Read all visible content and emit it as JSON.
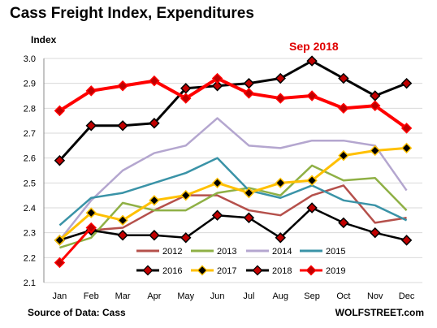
{
  "title": "Cass Freight Index, Expenditures",
  "source": "Source of Data: Cass",
  "site": "WOLFSTREET.com",
  "chart_data": {
    "type": "line",
    "title": "Cass Freight Index, Expenditures",
    "ylabel": "Index",
    "xlabel": "",
    "ylim": [
      2.1,
      3.0
    ],
    "yticks": [
      "2.1",
      "2.2",
      "2.3",
      "2.4",
      "2.5",
      "2.6",
      "2.7",
      "2.8",
      "2.9",
      "3.0"
    ],
    "categories": [
      "Jan",
      "Feb",
      "Mar",
      "Apr",
      "May",
      "Jun",
      "Jul",
      "Aug",
      "Sep",
      "Oct",
      "Nov",
      "Dec"
    ],
    "annotation": "Sep 2018",
    "legend_position": "bottom-right",
    "grid": "horizontal",
    "series": [
      {
        "name": "2012",
        "color": "#b5504b",
        "marker": false,
        "values": [
          2.27,
          2.31,
          2.32,
          2.39,
          2.45,
          2.45,
          2.39,
          2.37,
          2.45,
          2.49,
          2.34,
          2.36
        ]
      },
      {
        "name": "2013",
        "color": "#8fb045",
        "marker": false,
        "values": [
          2.24,
          2.28,
          2.42,
          2.39,
          2.39,
          2.46,
          2.48,
          2.45,
          2.57,
          2.51,
          2.52,
          2.39
        ]
      },
      {
        "name": "2014",
        "color": "#b4a6cf",
        "marker": false,
        "values": [
          2.27,
          2.43,
          2.55,
          2.62,
          2.65,
          2.76,
          2.65,
          2.64,
          2.67,
          2.67,
          2.65,
          2.47
        ]
      },
      {
        "name": "2015",
        "color": "#3a93a7",
        "marker": false,
        "values": [
          2.33,
          2.44,
          2.46,
          2.5,
          2.54,
          2.6,
          2.47,
          2.44,
          2.49,
          2.43,
          2.41,
          2.35
        ]
      },
      {
        "name": "2016",
        "color": "#000000",
        "marker": true,
        "values": [
          2.27,
          2.31,
          2.29,
          2.29,
          2.28,
          2.37,
          2.36,
          2.28,
          2.4,
          2.34,
          2.3,
          2.27
        ]
      },
      {
        "name": "2017",
        "color": "#ffc000",
        "marker": true,
        "values": [
          2.27,
          2.38,
          2.35,
          2.43,
          2.45,
          2.5,
          2.46,
          2.5,
          2.51,
          2.61,
          2.63,
          2.64
        ]
      },
      {
        "name": "2018",
        "color": "#000000",
        "marker": true,
        "values": [
          2.59,
          2.73,
          2.73,
          2.74,
          2.88,
          2.89,
          2.9,
          2.92,
          2.99,
          2.92,
          2.85,
          2.9
        ]
      },
      {
        "name": "2019",
        "color": "#ff0000",
        "marker": true,
        "values": [
          2.18,
          2.32,
          null,
          null,
          null,
          null,
          null,
          null,
          null,
          null,
          null,
          null
        ]
      }
    ],
    "series_2018_red": {
      "color": "#ff0000",
      "values": [
        2.79,
        2.87,
        2.89,
        2.91,
        2.84,
        2.92,
        2.86,
        2.84,
        2.85,
        2.8,
        2.81,
        2.72
      ]
    }
  }
}
